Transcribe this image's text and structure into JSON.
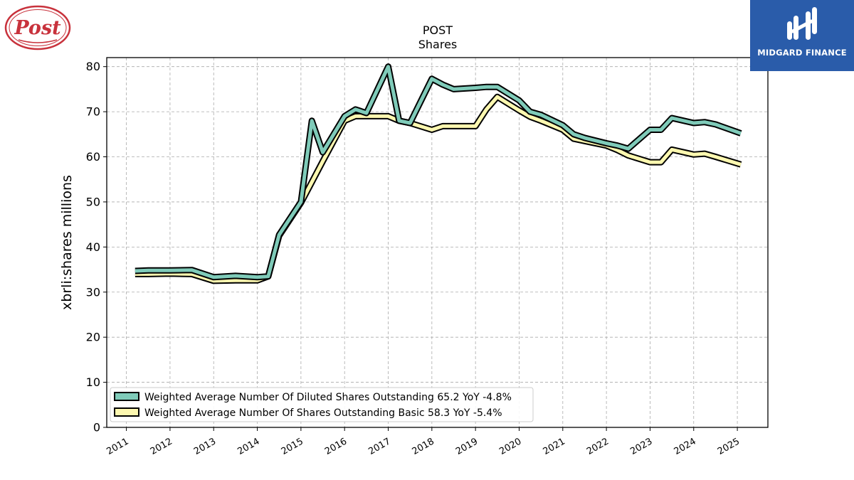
{
  "logos": {
    "left_brand": "Post",
    "right_brand": "MIDGARD FINANCE"
  },
  "colors": {
    "series_diluted": "#7fcbb9",
    "series_basic": "#fdf8b0",
    "outline": "#000000",
    "grid": "#aaaaaa",
    "midgard_bg": "#2a5caa",
    "post_red": "#c8323c"
  },
  "chart_data": {
    "type": "line",
    "title": "POST",
    "subtitle": "Shares",
    "xlabel": "",
    "ylabel": "xbrli:shares millions",
    "ylim": [
      0,
      82
    ],
    "yticks": [
      0,
      10,
      20,
      30,
      40,
      50,
      60,
      70,
      80
    ],
    "xlim": [
      2010.55,
      2025.7
    ],
    "xticks": [
      "2011",
      "2012",
      "2013",
      "2014",
      "2015",
      "2016",
      "2017",
      "2018",
      "2019",
      "2020",
      "2021",
      "2022",
      "2023",
      "2024",
      "2025"
    ],
    "grid": true,
    "legend_position": "lower-left",
    "series": [
      {
        "name": "Weighted Average Number Of Diluted Shares Outstanding",
        "legend": "Weighted Average Number Of Diluted Shares Outstanding  65.2 YoY -4.8%",
        "color": "#7fcbb9",
        "x": [
          2011.2,
          2011.5,
          2012.0,
          2012.5,
          2013.0,
          2013.5,
          2014.0,
          2014.25,
          2014.5,
          2015.0,
          2015.25,
          2015.5,
          2016.0,
          2016.25,
          2016.5,
          2017.0,
          2017.25,
          2017.5,
          2018.0,
          2018.25,
          2018.5,
          2019.0,
          2019.25,
          2019.5,
          2020.0,
          2020.25,
          2020.5,
          2021.0,
          2021.25,
          2021.5,
          2022.0,
          2022.25,
          2022.5,
          2023.0,
          2023.25,
          2023.5,
          2024.0,
          2024.25,
          2024.5,
          2025.08
        ],
        "y": [
          34.7,
          34.8,
          34.8,
          34.9,
          33.3,
          33.6,
          33.3,
          33.5,
          42.7,
          50.0,
          68.0,
          61.0,
          69.0,
          70.5,
          69.7,
          80.0,
          68.0,
          67.5,
          77.3,
          76.0,
          75.0,
          75.3,
          75.5,
          75.5,
          72.5,
          70.0,
          69.3,
          67.0,
          65.0,
          64.2,
          63.0,
          62.5,
          61.8,
          66.0,
          66.0,
          68.6,
          67.5,
          67.7,
          67.2,
          65.2
        ]
      },
      {
        "name": "Weighted Average Number Of Shares Outstanding Basic",
        "legend": "Weighted Average Number Of Shares Outstanding Basic  58.3 YoY -5.4%",
        "color": "#fdf8b0",
        "x": [
          2011.2,
          2011.5,
          2012.0,
          2012.5,
          2013.0,
          2013.5,
          2014.0,
          2014.25,
          2014.5,
          2015.0,
          2015.5,
          2016.0,
          2016.25,
          2016.5,
          2017.0,
          2017.25,
          2017.5,
          2018.0,
          2018.25,
          2018.5,
          2019.0,
          2019.25,
          2019.5,
          2020.0,
          2020.25,
          2020.5,
          2021.0,
          2021.25,
          2021.5,
          2022.0,
          2022.25,
          2022.5,
          2023.0,
          2023.25,
          2023.5,
          2024.0,
          2024.25,
          2024.5,
          2025.08
        ],
        "y": [
          34.0,
          34.0,
          34.1,
          34.0,
          32.5,
          32.6,
          32.6,
          33.5,
          42.5,
          49.8,
          59.0,
          68.0,
          69.0,
          69.0,
          69.0,
          68.0,
          67.5,
          66.0,
          66.8,
          66.8,
          66.8,
          70.5,
          73.3,
          70.3,
          68.9,
          68.0,
          66.0,
          64.0,
          63.5,
          62.5,
          61.5,
          60.3,
          58.8,
          58.8,
          61.6,
          60.5,
          60.7,
          60.0,
          58.3
        ]
      }
    ]
  }
}
